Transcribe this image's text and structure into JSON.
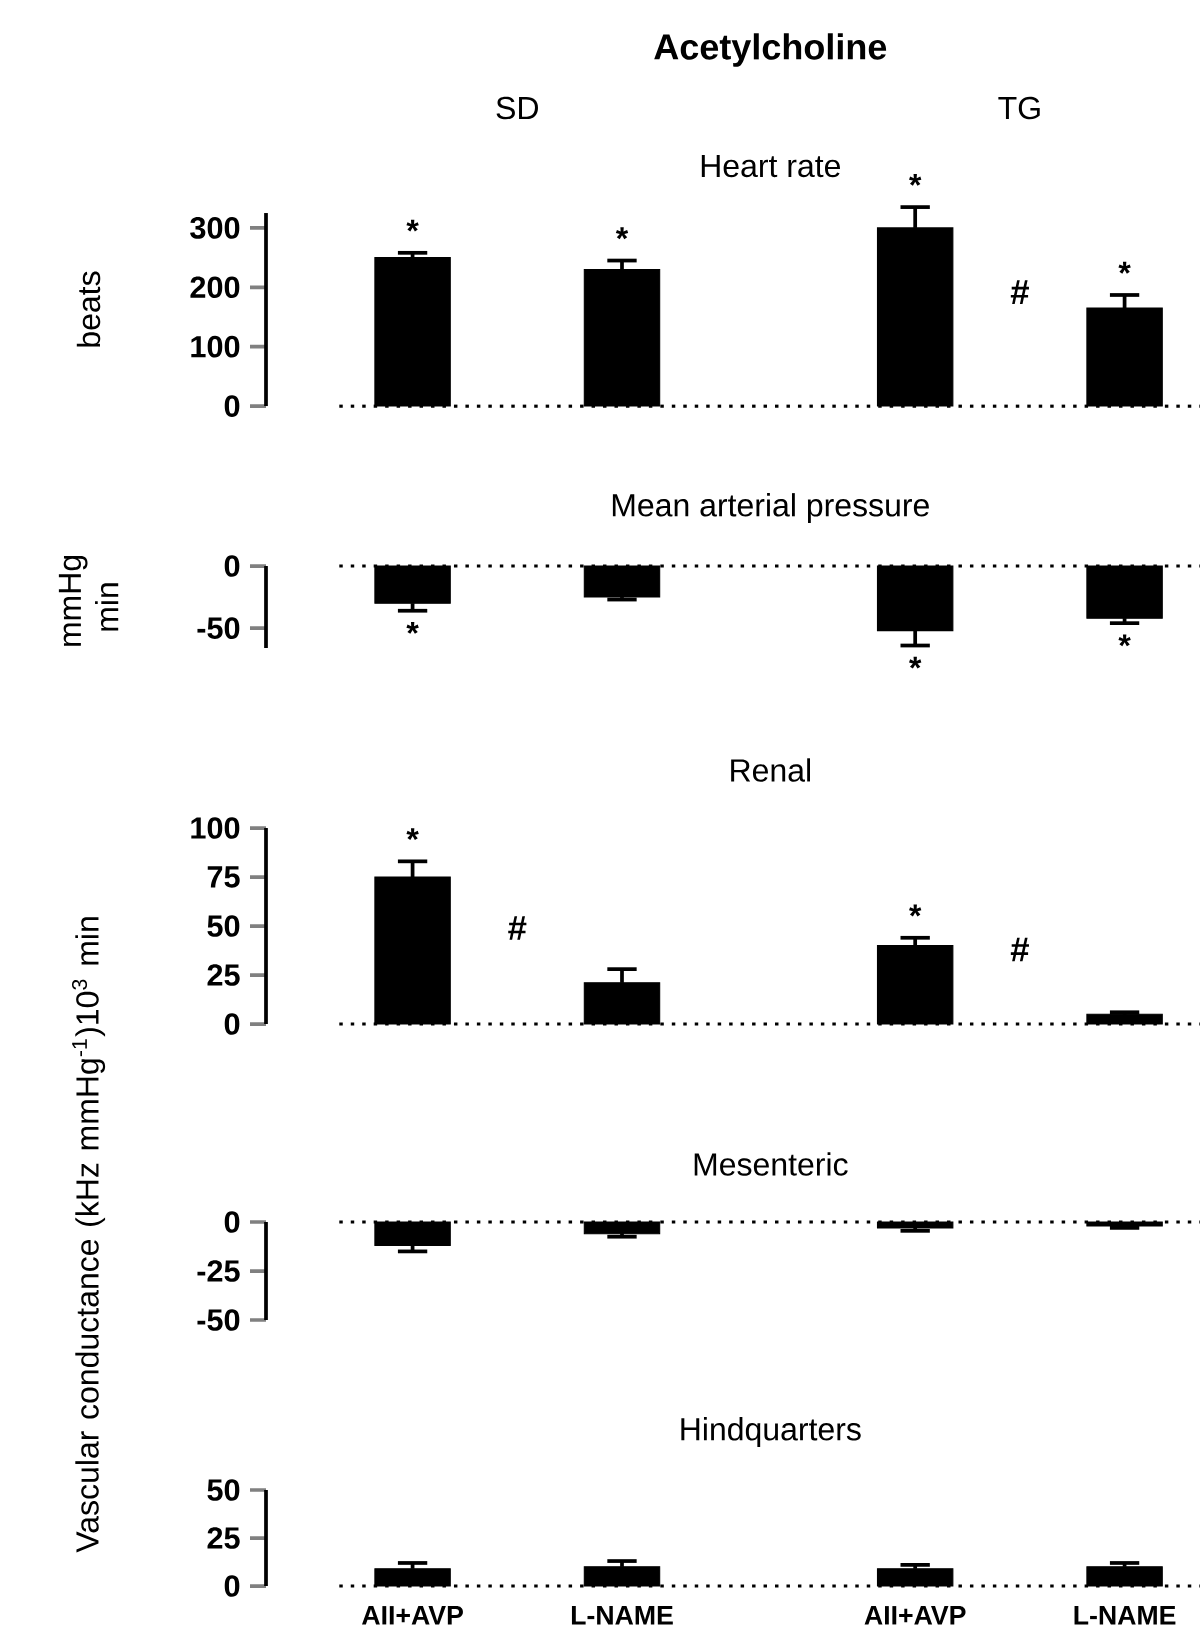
{
  "chart_data": [
    {
      "type": "bar",
      "title": "Acetylcholine",
      "subtitle": "Heart rate",
      "ylabel": "beats",
      "categories": [
        null,
        null,
        null,
        null
      ],
      "values": [
        250,
        230,
        300,
        165
      ],
      "errors": [
        8,
        15,
        35,
        22
      ],
      "value_labels": [
        "*",
        "*",
        "*",
        "*"
      ],
      "color": "#000000",
      "ylim": [
        0,
        325
      ],
      "yticks": [
        0,
        100,
        200,
        300
      ],
      "tick_labels": "y",
      "ref_lines": [
        {
          "axis": "y",
          "value": 0,
          "line_style": "dotted"
        }
      ],
      "annotations": [
        "SD",
        "TG",
        "#"
      ]
    },
    {
      "type": "bar",
      "title": "Mean arterial pressure",
      "ylabel": "mmHg min",
      "categories": [
        null,
        null,
        null,
        null
      ],
      "values": [
        -30,
        -25,
        -52,
        -42
      ],
      "errors": [
        6,
        2,
        12,
        4
      ],
      "value_labels": [
        "*",
        null,
        "*",
        "*"
      ],
      "color": "#000000",
      "ylim": [
        -66,
        0
      ],
      "yticks": [
        -50,
        0
      ],
      "tick_labels": "y",
      "ref_lines": [
        {
          "axis": "y",
          "value": 0,
          "line_style": "dotted"
        }
      ]
    },
    {
      "type": "bar",
      "title": "Renal",
      "ylabel": "Vascular conductance (kHz mmHg$^{-1}$)10$^{3}$ min",
      "categories": [
        null,
        null,
        null,
        null
      ],
      "values": [
        75,
        21,
        40,
        5
      ],
      "errors": [
        8,
        7,
        4,
        1
      ],
      "value_labels": [
        "*",
        null,
        "*",
        null
      ],
      "color": "#000000",
      "ylim": [
        0,
        100
      ],
      "yticks": [
        0,
        25,
        50,
        75,
        100
      ],
      "tick_labels": "y",
      "ref_lines": [
        {
          "axis": "y",
          "value": 0,
          "line_style": "dotted"
        }
      ],
      "annotations": [
        "#",
        "#"
      ]
    },
    {
      "type": "bar",
      "title": "Mesenteric",
      "categories": [
        null,
        null,
        null,
        null
      ],
      "values": [
        -12,
        -6,
        -3,
        -2
      ],
      "errors": [
        3,
        1.5,
        1.5,
        1
      ],
      "color": "#000000",
      "ylim": [
        -50,
        0
      ],
      "yticks": [
        -50,
        -25,
        0
      ],
      "tick_labels": "y",
      "ref_lines": [
        {
          "axis": "y",
          "value": 0,
          "line_style": "dotted"
        }
      ]
    },
    {
      "type": "bar",
      "title": "Hindquarters",
      "categories": [
        "AII+AVP",
        "L-NAME",
        "AII+AVP",
        "L-NAME"
      ],
      "values": [
        9,
        10,
        9,
        10
      ],
      "errors": [
        3,
        3,
        2,
        2
      ],
      "color": "#000000",
      "ylim": [
        0,
        50
      ],
      "yticks": [
        0,
        25,
        50
      ],
      "ref_lines": [
        {
          "axis": "y",
          "value": 0,
          "line_style": "dotted"
        }
      ]
    }
  ]
}
